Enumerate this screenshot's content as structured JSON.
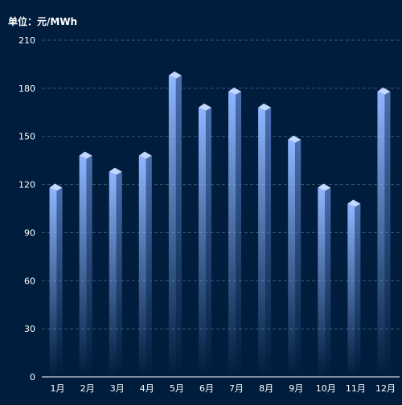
{
  "chart_data": {
    "type": "bar",
    "unit_label": "单位：元/MWh",
    "categories": [
      "1月",
      "2月",
      "3月",
      "4月",
      "5月",
      "6月",
      "7月",
      "8月",
      "9月",
      "10月",
      "11月",
      "12月"
    ],
    "values": [
      118,
      138,
      128,
      138,
      188,
      168,
      178,
      168,
      148,
      118,
      108,
      178
    ],
    "ylim": [
      0,
      210
    ],
    "yticks": [
      0,
      30,
      60,
      90,
      120,
      150,
      180,
      210
    ],
    "grid": true,
    "colors": {
      "background": "#001d3d",
      "bar_light": "#8fb6ff",
      "bar_dark": "#4a6fb0",
      "bar_top": "#c3d8ff",
      "grid": "#3b5674",
      "text": "#ffffff"
    }
  }
}
